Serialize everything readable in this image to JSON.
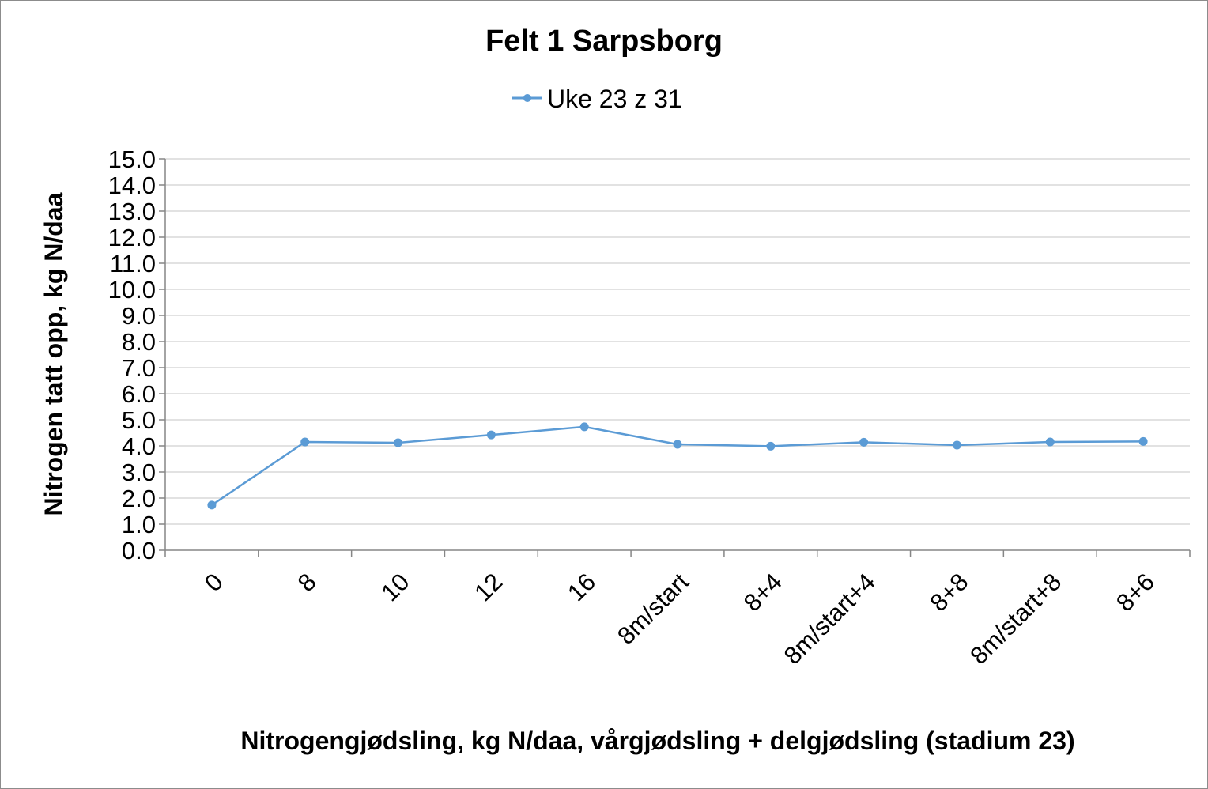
{
  "chart_data": {
    "type": "line",
    "title": "Felt 1 Sarpsborg",
    "xlabel": "Nitrogengjødsling, kg N/daa, vårgjødsling + delgjødsling (stadium 23)",
    "ylabel": "Nitrogen tatt opp, kg N/daa",
    "categories": [
      "0",
      "8",
      "10",
      "12",
      "16",
      "8m/start",
      "8+4",
      "8m/start+4",
      "8+8",
      "8m/start+8",
      "8+6"
    ],
    "series": [
      {
        "name": "Uke 23 z 31",
        "color": "#5b9bd5",
        "values": [
          1.73,
          4.15,
          4.12,
          4.42,
          4.73,
          4.06,
          3.99,
          4.14,
          4.03,
          4.15,
          4.17
        ]
      }
    ],
    "ylim": [
      0,
      15
    ],
    "ytick_step": 1,
    "ytick_labels": [
      "0.0",
      "1.0",
      "2.0",
      "3.0",
      "4.0",
      "5.0",
      "6.0",
      "7.0",
      "8.0",
      "9.0",
      "10.0",
      "11.0",
      "12.0",
      "13.0",
      "14.0",
      "15.0"
    ],
    "grid": true,
    "legend_position": "top-center"
  }
}
